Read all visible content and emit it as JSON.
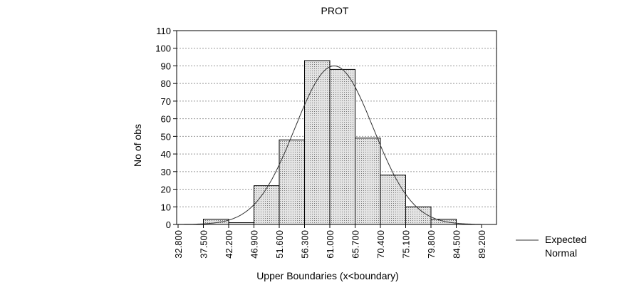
{
  "chart_data": {
    "type": "bar",
    "title": "PROT",
    "xlabel": "Upper Boundaries (x<boundary)",
    "ylabel": "No of obs",
    "ylim": [
      0,
      110
    ],
    "yticks": [
      0,
      10,
      20,
      30,
      40,
      50,
      60,
      70,
      80,
      90,
      100,
      110
    ],
    "boundaries": [
      32.8,
      37.5,
      42.2,
      46.9,
      51.6,
      56.3,
      61.0,
      65.7,
      70.4,
      75.1,
      79.8,
      84.5,
      89.2
    ],
    "boundary_labels": [
      "32.800",
      "37.500",
      "42.200",
      "46.900",
      "51.600",
      "56.300",
      "61.000",
      "65.700",
      "70.400",
      "75.100",
      "79.800",
      "84.500",
      "89.200"
    ],
    "series": [
      {
        "type": "bar",
        "values": [
          0,
          3,
          1,
          22,
          48,
          93,
          88,
          49,
          28,
          10,
          3,
          0
        ]
      },
      {
        "name": "Expected Normal",
        "type": "line",
        "mean": 61.8,
        "peak": 90,
        "sd": 7.3
      }
    ],
    "grid": true,
    "legend": {
      "position": "right",
      "lines": [
        "Expected",
        "Normal"
      ]
    },
    "colors": {
      "bar_fill": "#d4d4d4",
      "bar_stroke": "#000000",
      "grid": "#999999",
      "curve": "#333333"
    }
  }
}
